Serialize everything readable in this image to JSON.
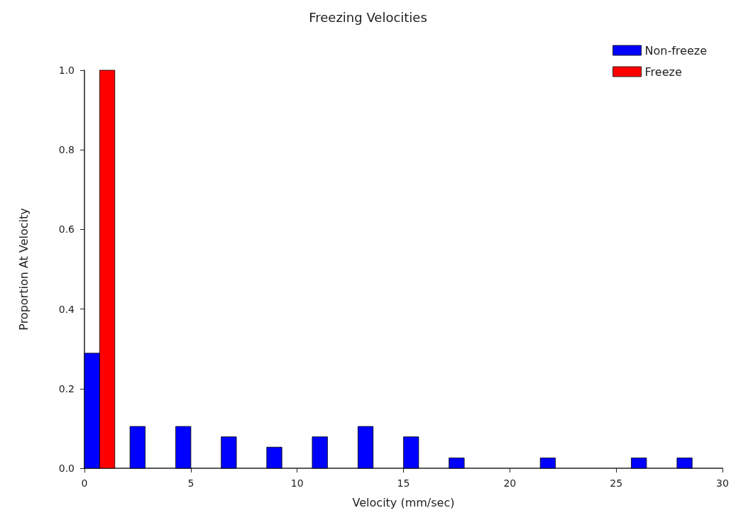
{
  "chart_data": {
    "type": "histogram",
    "title": "Freezing Velocities",
    "xlabel": "Velocity (mm/sec)",
    "ylabel": "Proportion At Velocity",
    "bins": [
      0,
      2.14,
      4.29,
      6.43,
      8.57,
      10.71,
      12.86,
      15,
      17.14,
      19.29,
      21.43,
      23.57,
      25.71,
      27.86,
      30
    ],
    "series": [
      {
        "name": "Non-freeze",
        "color": "#0000ff",
        "values": [
          0.289,
          0.105,
          0.105,
          0.079,
          0.053,
          0.079,
          0.105,
          0.079,
          0.026,
          0,
          0.026,
          0,
          0.026,
          0.026
        ]
      },
      {
        "name": "Freeze",
        "color": "#ff0000",
        "values": [
          1,
          0,
          0,
          0,
          0,
          0,
          0,
          0,
          0,
          0,
          0,
          0,
          0,
          0
        ]
      }
    ],
    "xlim": [
      0,
      30
    ],
    "xticks": [
      0,
      5,
      10,
      15,
      20,
      25,
      30
    ],
    "ylim": [
      0,
      1
    ],
    "yticks": [
      {
        "value": 0,
        "label": "0.0"
      },
      0.2,
      0.4,
      0.6,
      0.8,
      {
        "value": 1,
        "label": "1.0"
      }
    ],
    "grid": false,
    "legend": "top right"
  }
}
